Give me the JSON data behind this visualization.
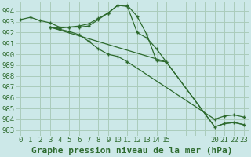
{
  "bg_color": "#cce8e8",
  "grid_color": "#aaccbb",
  "line_color": "#2d6a2d",
  "title": "Graphe pression niveau de la mer (hPa)",
  "xlim": [
    -0.5,
    23.5
  ],
  "ylim": [
    982.5,
    994.8
  ],
  "yticks": [
    983,
    984,
    985,
    986,
    987,
    988,
    989,
    990,
    991,
    992,
    993,
    994
  ],
  "xtick_positions": [
    0,
    1,
    2,
    3,
    4,
    5,
    6,
    7,
    8,
    9,
    10,
    11,
    12,
    13,
    14,
    15,
    20,
    21,
    22,
    23
  ],
  "xtick_labels": [
    "0",
    "1",
    "2",
    "3",
    "4",
    "5",
    "6",
    "7",
    "8",
    "9",
    "10",
    "11",
    "12",
    "13",
    "14",
    "15",
    "20",
    "21",
    "22",
    "23"
  ],
  "grid_x_positions": [
    0,
    1,
    2,
    3,
    4,
    5,
    6,
    7,
    8,
    9,
    10,
    11,
    12,
    13,
    14,
    15,
    16,
    17,
    18,
    19,
    20,
    21,
    22,
    23
  ],
  "line1_x": [
    0,
    1,
    2,
    3,
    4,
    5,
    6,
    7,
    8,
    9,
    10,
    11,
    12,
    13,
    14,
    15
  ],
  "line1_y": [
    993.2,
    993.4,
    993.1,
    992.9,
    992.5,
    992.5,
    992.6,
    992.8,
    993.3,
    993.8,
    994.5,
    994.5,
    993.5,
    991.8,
    989.4,
    989.3
  ],
  "line2_x": [
    3,
    4,
    5,
    6,
    7,
    8,
    9,
    10,
    11,
    12,
    13,
    14,
    15,
    20,
    21,
    22,
    23
  ],
  "line2_y": [
    992.5,
    992.4,
    992.5,
    992.5,
    992.6,
    993.2,
    993.8,
    994.5,
    994.4,
    992.0,
    991.5,
    990.5,
    989.3,
    983.3,
    983.6,
    983.7,
    983.5
  ],
  "line3_x": [
    3,
    15,
    20,
    21,
    22,
    23
  ],
  "line3_y": [
    992.5,
    989.3,
    983.3,
    983.6,
    983.7,
    983.5
  ],
  "line4_x": [
    3,
    4,
    5,
    6,
    7,
    8,
    9,
    10,
    11,
    20,
    21,
    22,
    23
  ],
  "line4_y": [
    992.5,
    992.3,
    992.1,
    991.8,
    991.2,
    990.5,
    990.0,
    989.8,
    989.3,
    984.0,
    984.3,
    984.4,
    984.2
  ],
  "title_fontsize": 8,
  "tick_fontsize": 6.5
}
